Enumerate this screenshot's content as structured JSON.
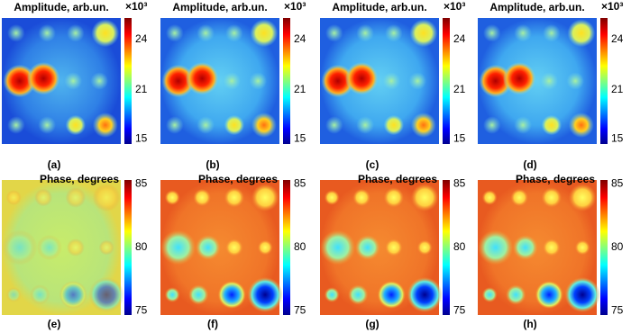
{
  "panels": [
    {
      "title": "Amplitude, arb.un.",
      "exponent": "×10³",
      "ticks": [
        24,
        21,
        15
      ],
      "label": "(a)"
    },
    {
      "title": "Amplitude, arb.un.",
      "exponent": "×10³",
      "ticks": [
        24,
        21,
        15
      ],
      "label": "(b)"
    },
    {
      "title": "Amplitude, arb.un.",
      "exponent": "×10³",
      "ticks": [
        24,
        21,
        15
      ],
      "label": "(c)"
    },
    {
      "title": "Amplitude, arb.un.",
      "exponent": "×10³",
      "ticks": [
        24,
        21,
        15
      ],
      "label": "(d)"
    },
    {
      "title": "Phase, degrees",
      "ticks": [
        85,
        80,
        75
      ],
      "label": "(e)"
    },
    {
      "title": "Phase, degrees",
      "ticks": [
        85,
        80,
        75
      ],
      "label": "(f)"
    },
    {
      "title": "Phase, degrees",
      "ticks": [
        85,
        80,
        75
      ],
      "label": "(g)"
    },
    {
      "title": "Phase, degrees",
      "ticks": [
        85,
        80,
        75
      ],
      "label": "(h)"
    }
  ]
}
